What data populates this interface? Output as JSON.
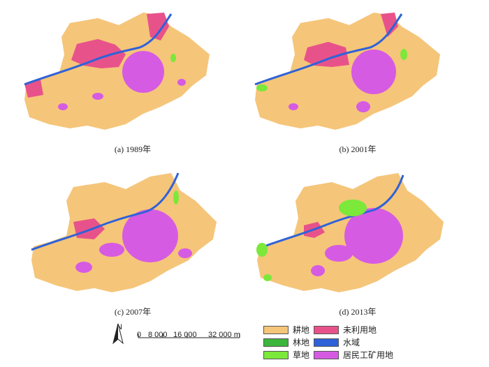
{
  "panels": [
    {
      "caption": "(a) 1989年"
    },
    {
      "caption": "(b) 2001年"
    },
    {
      "caption": "(c) 2007年"
    },
    {
      "caption": "(d) 2013年"
    }
  ],
  "north_label": "N",
  "scale_bar": {
    "labels": [
      "0",
      "8 000",
      "16 000",
      "32 000 m"
    ]
  },
  "legend": {
    "items": [
      {
        "label": "耕地",
        "color": "#f5c57a"
      },
      {
        "label": "林地",
        "color": "#3cb53c"
      },
      {
        "label": "草地",
        "color": "#7be83a"
      },
      {
        "label": "未利用地",
        "color": "#e8528a"
      },
      {
        "label": "水域",
        "color": "#2f62d8"
      },
      {
        "label": "居民工矿用地",
        "color": "#d65be3"
      }
    ]
  },
  "colors": {
    "cropland": "#f5c57a",
    "forest": "#3cb53c",
    "grassland": "#7be83a",
    "unused": "#e8528a",
    "water": "#2f62d8",
    "urban": "#d65be3"
  }
}
